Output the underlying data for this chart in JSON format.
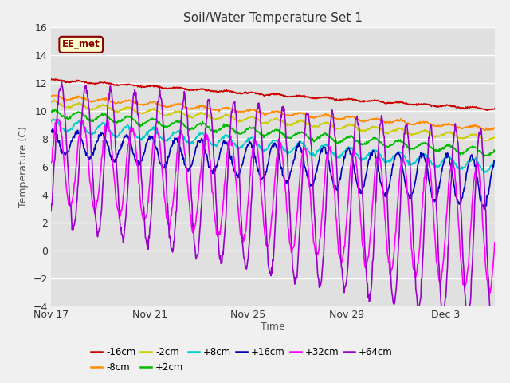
{
  "title": "Soil/Water Temperature Set 1",
  "xlabel": "Time",
  "ylabel": "Temperature (C)",
  "ylim": [
    -4,
    16
  ],
  "yticks": [
    -4,
    -2,
    0,
    2,
    4,
    6,
    8,
    10,
    12,
    14,
    16
  ],
  "fig_bg": "#f0f0f0",
  "plot_bg": "#e0e0e0",
  "annotation_text": "EE_met",
  "annotation_fg": "#8b0000",
  "annotation_bg": "#ffffcc",
  "series_colors": {
    "-16cm": "#cc0000",
    "-8cm": "#ff8c00",
    "-2cm": "#cccc00",
    "+2cm": "#00bb00",
    "+8cm": "#00cccc",
    "+16cm": "#0000bb",
    "+32cm": "#ff00ff",
    "+64cm": "#9900cc"
  },
  "legend_order": [
    "-16cm",
    "-8cm",
    "-2cm",
    "+2cm",
    "+8cm",
    "+16cm",
    "+32cm",
    "+64cm"
  ],
  "x_tick_labels": [
    "Nov 17",
    "Nov 21",
    "Nov 25",
    "Nov 29",
    "Dec 3"
  ],
  "x_tick_positions": [
    0,
    4,
    8,
    12,
    16
  ],
  "grid_color": "#ffffff",
  "lw": 1.2
}
